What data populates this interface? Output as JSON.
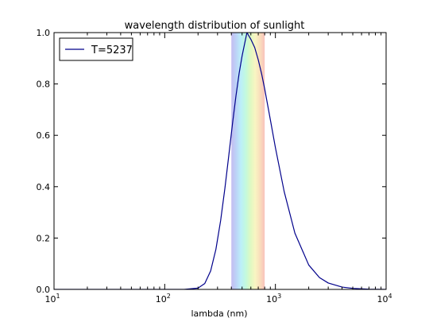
{
  "chart_data": {
    "type": "line",
    "title": "wavelength distribution of sunlight",
    "xlabel": "lambda (nm)",
    "ylabel": "",
    "xscale": "log",
    "xlim": [
      10,
      10000
    ],
    "ylim": [
      0.0,
      1.0
    ],
    "grid": false,
    "legend": {
      "placement": "top-left"
    },
    "x_ticks": [
      {
        "value": 10,
        "base": "10",
        "exp": "1"
      },
      {
        "value": 100,
        "base": "10",
        "exp": "2"
      },
      {
        "value": 1000,
        "base": "10",
        "exp": "3"
      },
      {
        "value": 10000,
        "base": "10",
        "exp": "4"
      }
    ],
    "y_ticks": [
      "0.0",
      "0.2",
      "0.4",
      "0.6",
      "0.8",
      "1.0"
    ],
    "series": [
      {
        "name": "T=5237",
        "color": "#00008b",
        "x": [
          150,
          200,
          230,
          260,
          290,
          320,
          350,
          380,
          410,
          440,
          470,
          500,
          553,
          600,
          650,
          700,
          750,
          800,
          900,
          1000,
          1200,
          1500,
          2000,
          2500,
          3000,
          4000,
          5000,
          7000,
          10000
        ],
        "y": [
          0.0,
          0.005,
          0.023,
          0.072,
          0.156,
          0.268,
          0.395,
          0.525,
          0.647,
          0.753,
          0.841,
          0.909,
          1.0,
          0.974,
          0.942,
          0.894,
          0.84,
          0.781,
          0.661,
          0.552,
          0.381,
          0.219,
          0.095,
          0.046,
          0.025,
          0.009,
          0.004,
          0.001,
          0.0
        ]
      }
    ],
    "visible_band": {
      "range_nm": [
        400,
        800
      ],
      "colors": [
        "#9d8fe6",
        "#8fb6f2",
        "#8fe4f5",
        "#9af5c9",
        "#c8f59a",
        "#f5ef9a",
        "#f5c98f",
        "#f59a8f"
      ],
      "opacity": 0.6
    }
  }
}
